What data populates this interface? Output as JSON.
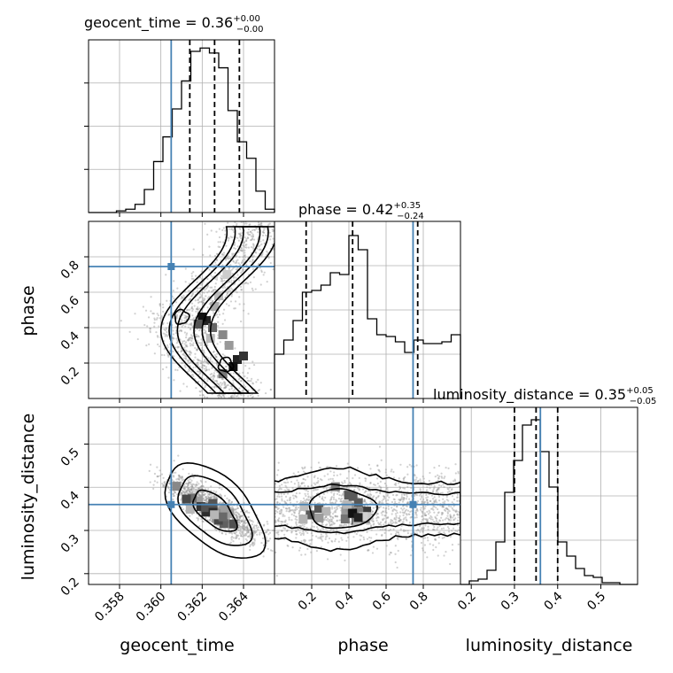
{
  "figure": {
    "truth_color": "#4682b4",
    "hist_color": "#000000",
    "grid": true
  },
  "chart_data": {
    "type": "corner",
    "parameters": [
      "geocent_time",
      "phase",
      "luminosity_distance"
    ],
    "truths": {
      "geocent_time": 0.3605,
      "phase": 0.745,
      "luminosity_distance": 0.36
    },
    "panels": {
      "geocent_time": {
        "title_prefix": "geocent_time = 0.36",
        "err_plus": "+0.00",
        "err_minus": "−0.00",
        "xlim": [
          0.3565,
          0.3655
        ],
        "xticks": [
          0.358,
          0.36,
          0.362,
          0.364
        ],
        "xticklabels": [
          "0.358",
          "0.360",
          "0.362",
          "0.364"
        ],
        "quantiles": [
          0.3614,
          0.3626,
          0.3638
        ],
        "hist_bins": [
          0.3565,
          0.3655,
          20
        ],
        "hist_counts": [
          0,
          0,
          0,
          1,
          2,
          5,
          14,
          31,
          46,
          63,
          80,
          98,
          100,
          97,
          88,
          62,
          43,
          33,
          13,
          2
        ],
        "ylim": [
          0,
          105
        ]
      },
      "phase": {
        "title_prefix": "phase = 0.42",
        "err_plus": "+0.35",
        "err_minus": "−0.24",
        "xlim": [
          0.0,
          1.0
        ],
        "xticks": [
          0.2,
          0.4,
          0.6,
          0.8
        ],
        "xticklabels": [
          "0.2",
          "0.4",
          "0.6",
          "0.8"
        ],
        "yticks": [
          0.2,
          0.4,
          0.6,
          0.8
        ],
        "yticklabels": [
          "0.2",
          "0.4",
          "0.6",
          "0.8"
        ],
        "quantiles": [
          0.17,
          0.42,
          0.77
        ],
        "hist_bins": [
          0.0,
          1.0,
          20
        ],
        "hist_counts": [
          25,
          33,
          44,
          60,
          61,
          64,
          71,
          70,
          92,
          84,
          45,
          36,
          35,
          32,
          26,
          33,
          31,
          31,
          32,
          36
        ],
        "ylim": [
          0,
          100
        ]
      },
      "luminosity_distance": {
        "title_prefix": "luminosity_distance = 0.35",
        "err_plus": "+0.05",
        "err_minus": "−0.05",
        "xlim": [
          0.175,
          0.585
        ],
        "xticks": [
          0.2,
          0.3,
          0.4,
          0.5
        ],
        "xticklabels": [
          "0.2",
          "0.3",
          "0.4",
          "0.5"
        ],
        "yticks": [
          0.2,
          0.3,
          0.4,
          0.5
        ],
        "yticklabels": [
          "0.2",
          "0.3",
          "0.4",
          "0.5"
        ],
        "quantiles": [
          0.3,
          0.35,
          0.4
        ],
        "hist_bins": [
          0.175,
          0.585,
          20
        ],
        "hist_counts": [
          0,
          2,
          3,
          8,
          24,
          52,
          70,
          90,
          93,
          75,
          55,
          24,
          16,
          9,
          5,
          4,
          1,
          1,
          0,
          0
        ],
        "ylim": [
          0,
          100
        ]
      }
    },
    "axis_labels": {
      "geocent_time": "geocent_time",
      "phase": "phase",
      "luminosity_distance": "luminosity_distance"
    }
  }
}
